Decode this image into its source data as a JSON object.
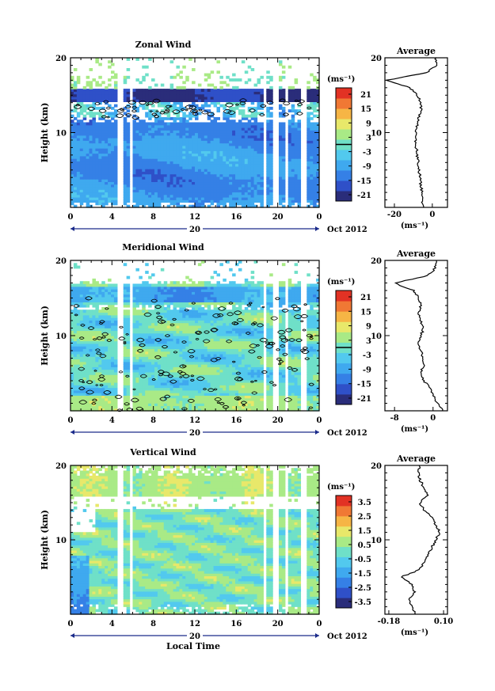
{
  "colors": {
    "colorbar": [
      "#2a2d7a",
      "#2f50c8",
      "#3580e6",
      "#3fa9ef",
      "#52c9ee",
      "#6fe0c8",
      "#a9ea86",
      "#e8e86a",
      "#f6b545",
      "#f07834",
      "#e23224"
    ],
    "background": "#ffffff"
  },
  "chart_data": [
    {
      "type": "heatmap",
      "panel": "zonal",
      "title": "Zonal Wind",
      "ylabel": "Height (km)",
      "ylim": [
        0,
        20
      ],
      "x_ticks": [
        "0",
        "4",
        "8",
        "12",
        "16",
        "20",
        "0"
      ],
      "y_ticks": [
        "10",
        "20"
      ],
      "date_label": "20",
      "month_label": "Oct 2012",
      "units_label": "(ms⁻¹)",
      "colorbar_ticks": [
        "21",
        "15",
        "9",
        "3",
        "-3",
        "-9",
        "-15",
        "-21"
      ],
      "colorbar_range": [
        -24,
        24
      ],
      "contour_at": 0,
      "profile": {
        "title": "Average",
        "xlabel": "(ms⁻¹)",
        "x_ticks": [
          "-20",
          "0"
        ],
        "xlim": [
          -25,
          8
        ],
        "heights": [
          0,
          1,
          2,
          3,
          4,
          5,
          6,
          7,
          8,
          9,
          10,
          11,
          12,
          13,
          14,
          15,
          16,
          17,
          18,
          19,
          20
        ],
        "values": [
          -5,
          -5,
          -5.5,
          -6,
          -6.5,
          -7,
          -7.5,
          -8,
          -8.5,
          -9,
          -9,
          -8,
          -7,
          -6,
          -6,
          -8,
          -12,
          -24,
          -3,
          2,
          2
        ]
      }
    },
    {
      "type": "heatmap",
      "panel": "meridional",
      "title": "Meridional Wind",
      "ylabel": "Height (km)",
      "ylim": [
        0,
        20
      ],
      "x_ticks": [
        "0",
        "4",
        "8",
        "12",
        "16",
        "20",
        "0"
      ],
      "y_ticks": [
        "10",
        "20"
      ],
      "date_label": "20",
      "month_label": "Oct 2012",
      "units_label": "(ms⁻¹)",
      "colorbar_ticks": [
        "21",
        "15",
        "9",
        "3",
        "-3",
        "-9",
        "-15",
        "-21"
      ],
      "colorbar_range": [
        -24,
        24
      ],
      "contour_at": 0,
      "profile": {
        "title": "Average",
        "xlabel": "(ms⁻¹)",
        "x_ticks": [
          "-8",
          "0"
        ],
        "xlim": [
          -10,
          3
        ],
        "heights": [
          0,
          1,
          2,
          3,
          4,
          5,
          6,
          7,
          8,
          9,
          10,
          11,
          12,
          13,
          14,
          15,
          16,
          17,
          18,
          19,
          20
        ],
        "values": [
          2,
          1,
          0,
          -0.5,
          -2,
          -2.5,
          -2,
          -2,
          -2.5,
          -3,
          -2.5,
          -2,
          -2.5,
          -3,
          -2.5,
          -3,
          -4,
          -8,
          -1,
          0.5,
          0.5
        ]
      }
    },
    {
      "type": "heatmap",
      "panel": "vertical",
      "title": "Vertical Wind",
      "ylabel": "Height (km)",
      "ylim": [
        0,
        20
      ],
      "x_ticks": [
        "0",
        "4",
        "8",
        "12",
        "16",
        "20",
        "0"
      ],
      "y_ticks": [
        "10",
        "20"
      ],
      "date_label": "20",
      "month_label": "Oct 2012",
      "units_label": "(ms⁻¹)",
      "colorbar_ticks": [
        "3.5",
        "2.5",
        "1.5",
        "0.5",
        "-0.5",
        "-1.5",
        "-2.5",
        "-3.5"
      ],
      "colorbar_range": [
        -4,
        4
      ],
      "contour_at": null,
      "xlabel": "Local Time",
      "profile": {
        "title": "Average",
        "xlabel": "(ms⁻¹)",
        "x_ticks": [
          "-0.18",
          "0.10"
        ],
        "xlim": [
          -0.2,
          0.12
        ],
        "heights": [
          0,
          1,
          2,
          3,
          4,
          5,
          6,
          7,
          8,
          9,
          10,
          11,
          12,
          13,
          14,
          15,
          16,
          17,
          18,
          19,
          20
        ],
        "values": [
          -0.04,
          -0.06,
          -0.08,
          -0.05,
          -0.06,
          -0.12,
          -0.02,
          0.0,
          0.02,
          0.04,
          0.06,
          0.08,
          0.06,
          0.04,
          0.0,
          -0.02,
          0.02,
          0.0,
          -0.02,
          -0.03,
          -0.02
        ]
      }
    }
  ]
}
